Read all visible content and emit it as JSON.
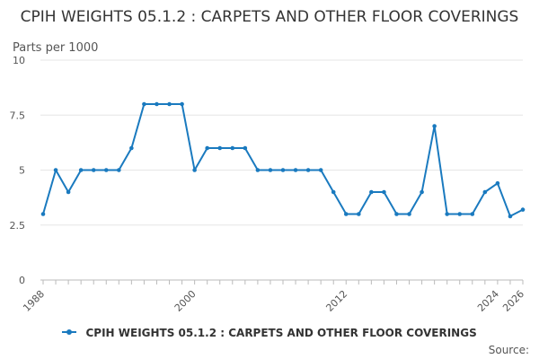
{
  "chart_data": {
    "type": "line",
    "title": "CPIH WEIGHTS 05.1.2 : CARPETS AND OTHER FLOOR COVERINGS",
    "ylabel": "Parts per 1000",
    "xlabel": "",
    "ylim": [
      0,
      10
    ],
    "yticks": [
      "0",
      "2.5",
      "5",
      "7.5",
      "10"
    ],
    "xlim": [
      1988,
      2026
    ],
    "xticks": [
      "1988",
      "2000",
      "2012",
      "2024",
      "2026"
    ],
    "grid": true,
    "legend": "bottom",
    "color": "#1a7abf",
    "series": [
      {
        "name": "CPIH WEIGHTS 05.1.2 : CARPETS AND OTHER FLOOR COVERINGS",
        "x": [
          1988,
          1989,
          1990,
          1991,
          1992,
          1993,
          1994,
          1995,
          1996,
          1997,
          1998,
          1999,
          2000,
          2001,
          2002,
          2003,
          2004,
          2005,
          2006,
          2007,
          2008,
          2009,
          2010,
          2011,
          2012,
          2013,
          2014,
          2015,
          2016,
          2017,
          2018,
          2019,
          2020,
          2021,
          2022,
          2023,
          2024,
          2025,
          2026
        ],
        "values": [
          3,
          5,
          4,
          5,
          5,
          5,
          5,
          6,
          8,
          8,
          8,
          8,
          5,
          6,
          6,
          6,
          6,
          5,
          5,
          5,
          5,
          5,
          5,
          4,
          3,
          3,
          4,
          4,
          3,
          3,
          4,
          7,
          3,
          3,
          3,
          4,
          4.4,
          2.9,
          3.2
        ]
      }
    ]
  },
  "source_label": "Source:"
}
